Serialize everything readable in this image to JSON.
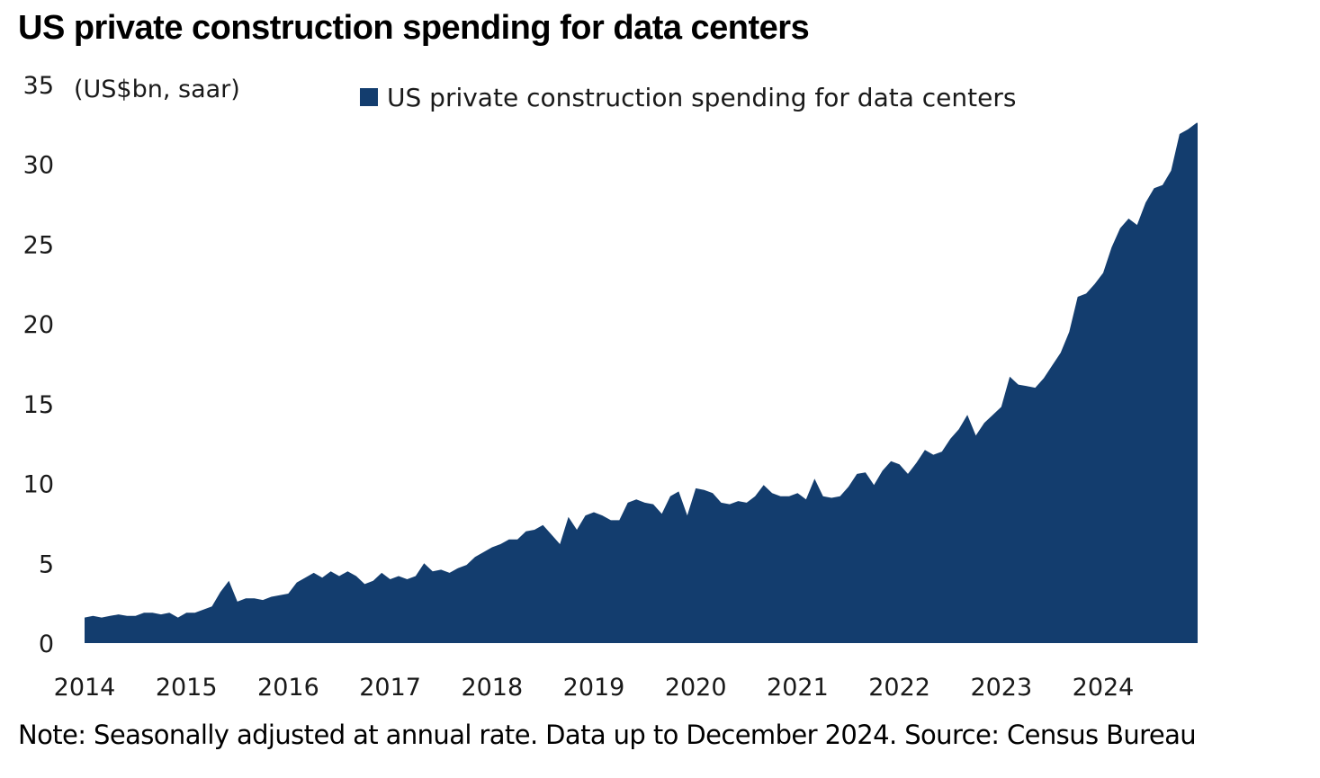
{
  "title": "US private construction spending for data centers",
  "note": "Note: Seasonally adjusted at annual rate. Data up to December 2024. Source: Census Bureau",
  "colors": {
    "series": "#133d6e"
  },
  "chart_data": {
    "type": "area",
    "title": "US private construction spending for data centers",
    "ylabel": "(US$bn, saar)",
    "ylim": [
      0,
      35
    ],
    "yticks": [
      "0",
      "5",
      "10",
      "15",
      "20",
      "25",
      "30",
      "35"
    ],
    "xticks": [
      "2014",
      "2015",
      "2016",
      "2017",
      "2018",
      "2019",
      "2020",
      "2021",
      "2022",
      "2023",
      "2024"
    ],
    "xrange": [
      "2014-01",
      "2024-12"
    ],
    "legend": "top",
    "grid": false,
    "series": [
      {
        "name": "US private construction spending for data centers",
        "x": [
          "2014-01",
          "2014-02",
          "2014-03",
          "2014-04",
          "2014-05",
          "2014-06",
          "2014-07",
          "2014-08",
          "2014-09",
          "2014-10",
          "2014-11",
          "2014-12",
          "2015-01",
          "2015-02",
          "2015-03",
          "2015-04",
          "2015-05",
          "2015-06",
          "2015-07",
          "2015-08",
          "2015-09",
          "2015-10",
          "2015-11",
          "2015-12",
          "2016-01",
          "2016-02",
          "2016-03",
          "2016-04",
          "2016-05",
          "2016-06",
          "2016-07",
          "2016-08",
          "2016-09",
          "2016-10",
          "2016-11",
          "2016-12",
          "2017-01",
          "2017-02",
          "2017-03",
          "2017-04",
          "2017-05",
          "2017-06",
          "2017-07",
          "2017-08",
          "2017-09",
          "2017-10",
          "2017-11",
          "2017-12",
          "2018-01",
          "2018-02",
          "2018-03",
          "2018-04",
          "2018-05",
          "2018-06",
          "2018-07",
          "2018-08",
          "2018-09",
          "2018-10",
          "2018-11",
          "2018-12",
          "2019-01",
          "2019-02",
          "2019-03",
          "2019-04",
          "2019-05",
          "2019-06",
          "2019-07",
          "2019-08",
          "2019-09",
          "2019-10",
          "2019-11",
          "2019-12",
          "2020-01",
          "2020-02",
          "2020-03",
          "2020-04",
          "2020-05",
          "2020-06",
          "2020-07",
          "2020-08",
          "2020-09",
          "2020-10",
          "2020-11",
          "2020-12",
          "2021-01",
          "2021-02",
          "2021-03",
          "2021-04",
          "2021-05",
          "2021-06",
          "2021-07",
          "2021-08",
          "2021-09",
          "2021-10",
          "2021-11",
          "2021-12",
          "2022-01",
          "2022-02",
          "2022-03",
          "2022-04",
          "2022-05",
          "2022-06",
          "2022-07",
          "2022-08",
          "2022-09",
          "2022-10",
          "2022-11",
          "2022-12",
          "2023-01",
          "2023-02",
          "2023-03",
          "2023-04",
          "2023-05",
          "2023-06",
          "2023-07",
          "2023-08",
          "2023-09",
          "2023-10",
          "2023-11",
          "2023-12",
          "2024-01",
          "2024-02",
          "2024-03",
          "2024-04",
          "2024-05",
          "2024-06",
          "2024-07",
          "2024-08",
          "2024-09",
          "2024-10",
          "2024-11",
          "2024-12"
        ],
        "values": [
          1.6,
          1.7,
          1.6,
          1.7,
          1.8,
          1.7,
          1.7,
          1.9,
          1.9,
          1.8,
          1.9,
          1.6,
          1.9,
          1.9,
          2.1,
          2.3,
          3.2,
          3.9,
          2.6,
          2.8,
          2.8,
          2.7,
          2.9,
          3.0,
          3.1,
          3.8,
          4.1,
          4.4,
          4.1,
          4.5,
          4.2,
          4.5,
          4.2,
          3.7,
          3.9,
          4.4,
          4.0,
          4.2,
          4.0,
          4.2,
          5.0,
          4.5,
          4.6,
          4.4,
          4.7,
          4.9,
          5.4,
          5.7,
          6.0,
          6.2,
          6.5,
          6.5,
          7.0,
          7.1,
          7.4,
          6.8,
          6.2,
          7.9,
          7.1,
          8.0,
          8.2,
          8.0,
          7.7,
          7.7,
          8.8,
          9.0,
          8.8,
          8.7,
          8.1,
          9.2,
          9.5,
          8.0,
          9.7,
          9.6,
          9.4,
          8.8,
          8.7,
          8.9,
          8.8,
          9.2,
          9.9,
          9.4,
          9.2,
          9.2,
          9.4,
          9.0,
          10.3,
          9.2,
          9.1,
          9.2,
          9.8,
          10.6,
          10.7,
          9.9,
          10.8,
          11.4,
          11.2,
          10.6,
          11.3,
          12.1,
          11.8,
          12.0,
          12.8,
          13.4,
          14.3,
          13.0,
          13.8,
          14.3,
          14.8,
          16.7,
          16.2,
          16.1,
          16.0,
          16.6,
          17.4,
          18.2,
          19.5,
          21.7,
          21.9,
          22.5,
          23.2,
          24.8,
          26.0,
          26.6,
          26.2,
          27.6,
          28.5,
          28.7,
          29.6,
          31.9,
          32.2,
          32.6
        ]
      }
    ]
  }
}
